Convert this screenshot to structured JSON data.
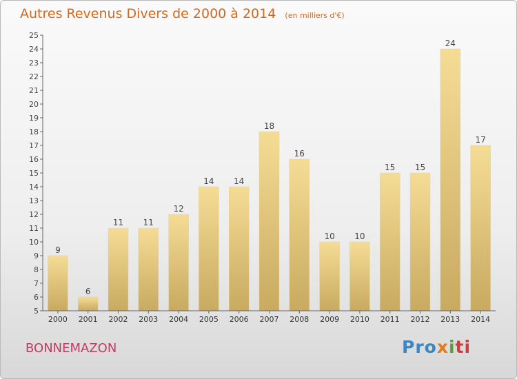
{
  "title": "Autres Revenus Divers de 2000 à 2014",
  "unit_note": "(en milliers d'€)",
  "commune": "BONNEMAZON",
  "logo": {
    "text": "Proxiti",
    "colors": [
      "#3a87c8",
      "#e07b1f",
      "#5a9e3b",
      "#d23c3c"
    ]
  },
  "colors": {
    "title": "#d2691e",
    "commune": "#c23b64",
    "bar_top": "#f5dc95",
    "bar_bottom": "#c8aa60"
  },
  "chart_data": {
    "type": "bar",
    "categories": [
      "2000",
      "2001",
      "2002",
      "2003",
      "2004",
      "2005",
      "2006",
      "2007",
      "2008",
      "2009",
      "2010",
      "2011",
      "2012",
      "2013",
      "2014"
    ],
    "values": [
      9,
      6,
      11,
      11,
      12,
      14,
      14,
      18,
      16,
      10,
      10,
      15,
      15,
      24,
      17
    ],
    "ylim": [
      5,
      25
    ],
    "yticks": [
      5,
      6,
      7,
      8,
      9,
      10,
      11,
      12,
      13,
      14,
      15,
      16,
      17,
      18,
      19,
      20,
      21,
      22,
      23,
      24,
      25
    ],
    "grid": false,
    "xlabel": "",
    "ylabel": ""
  }
}
